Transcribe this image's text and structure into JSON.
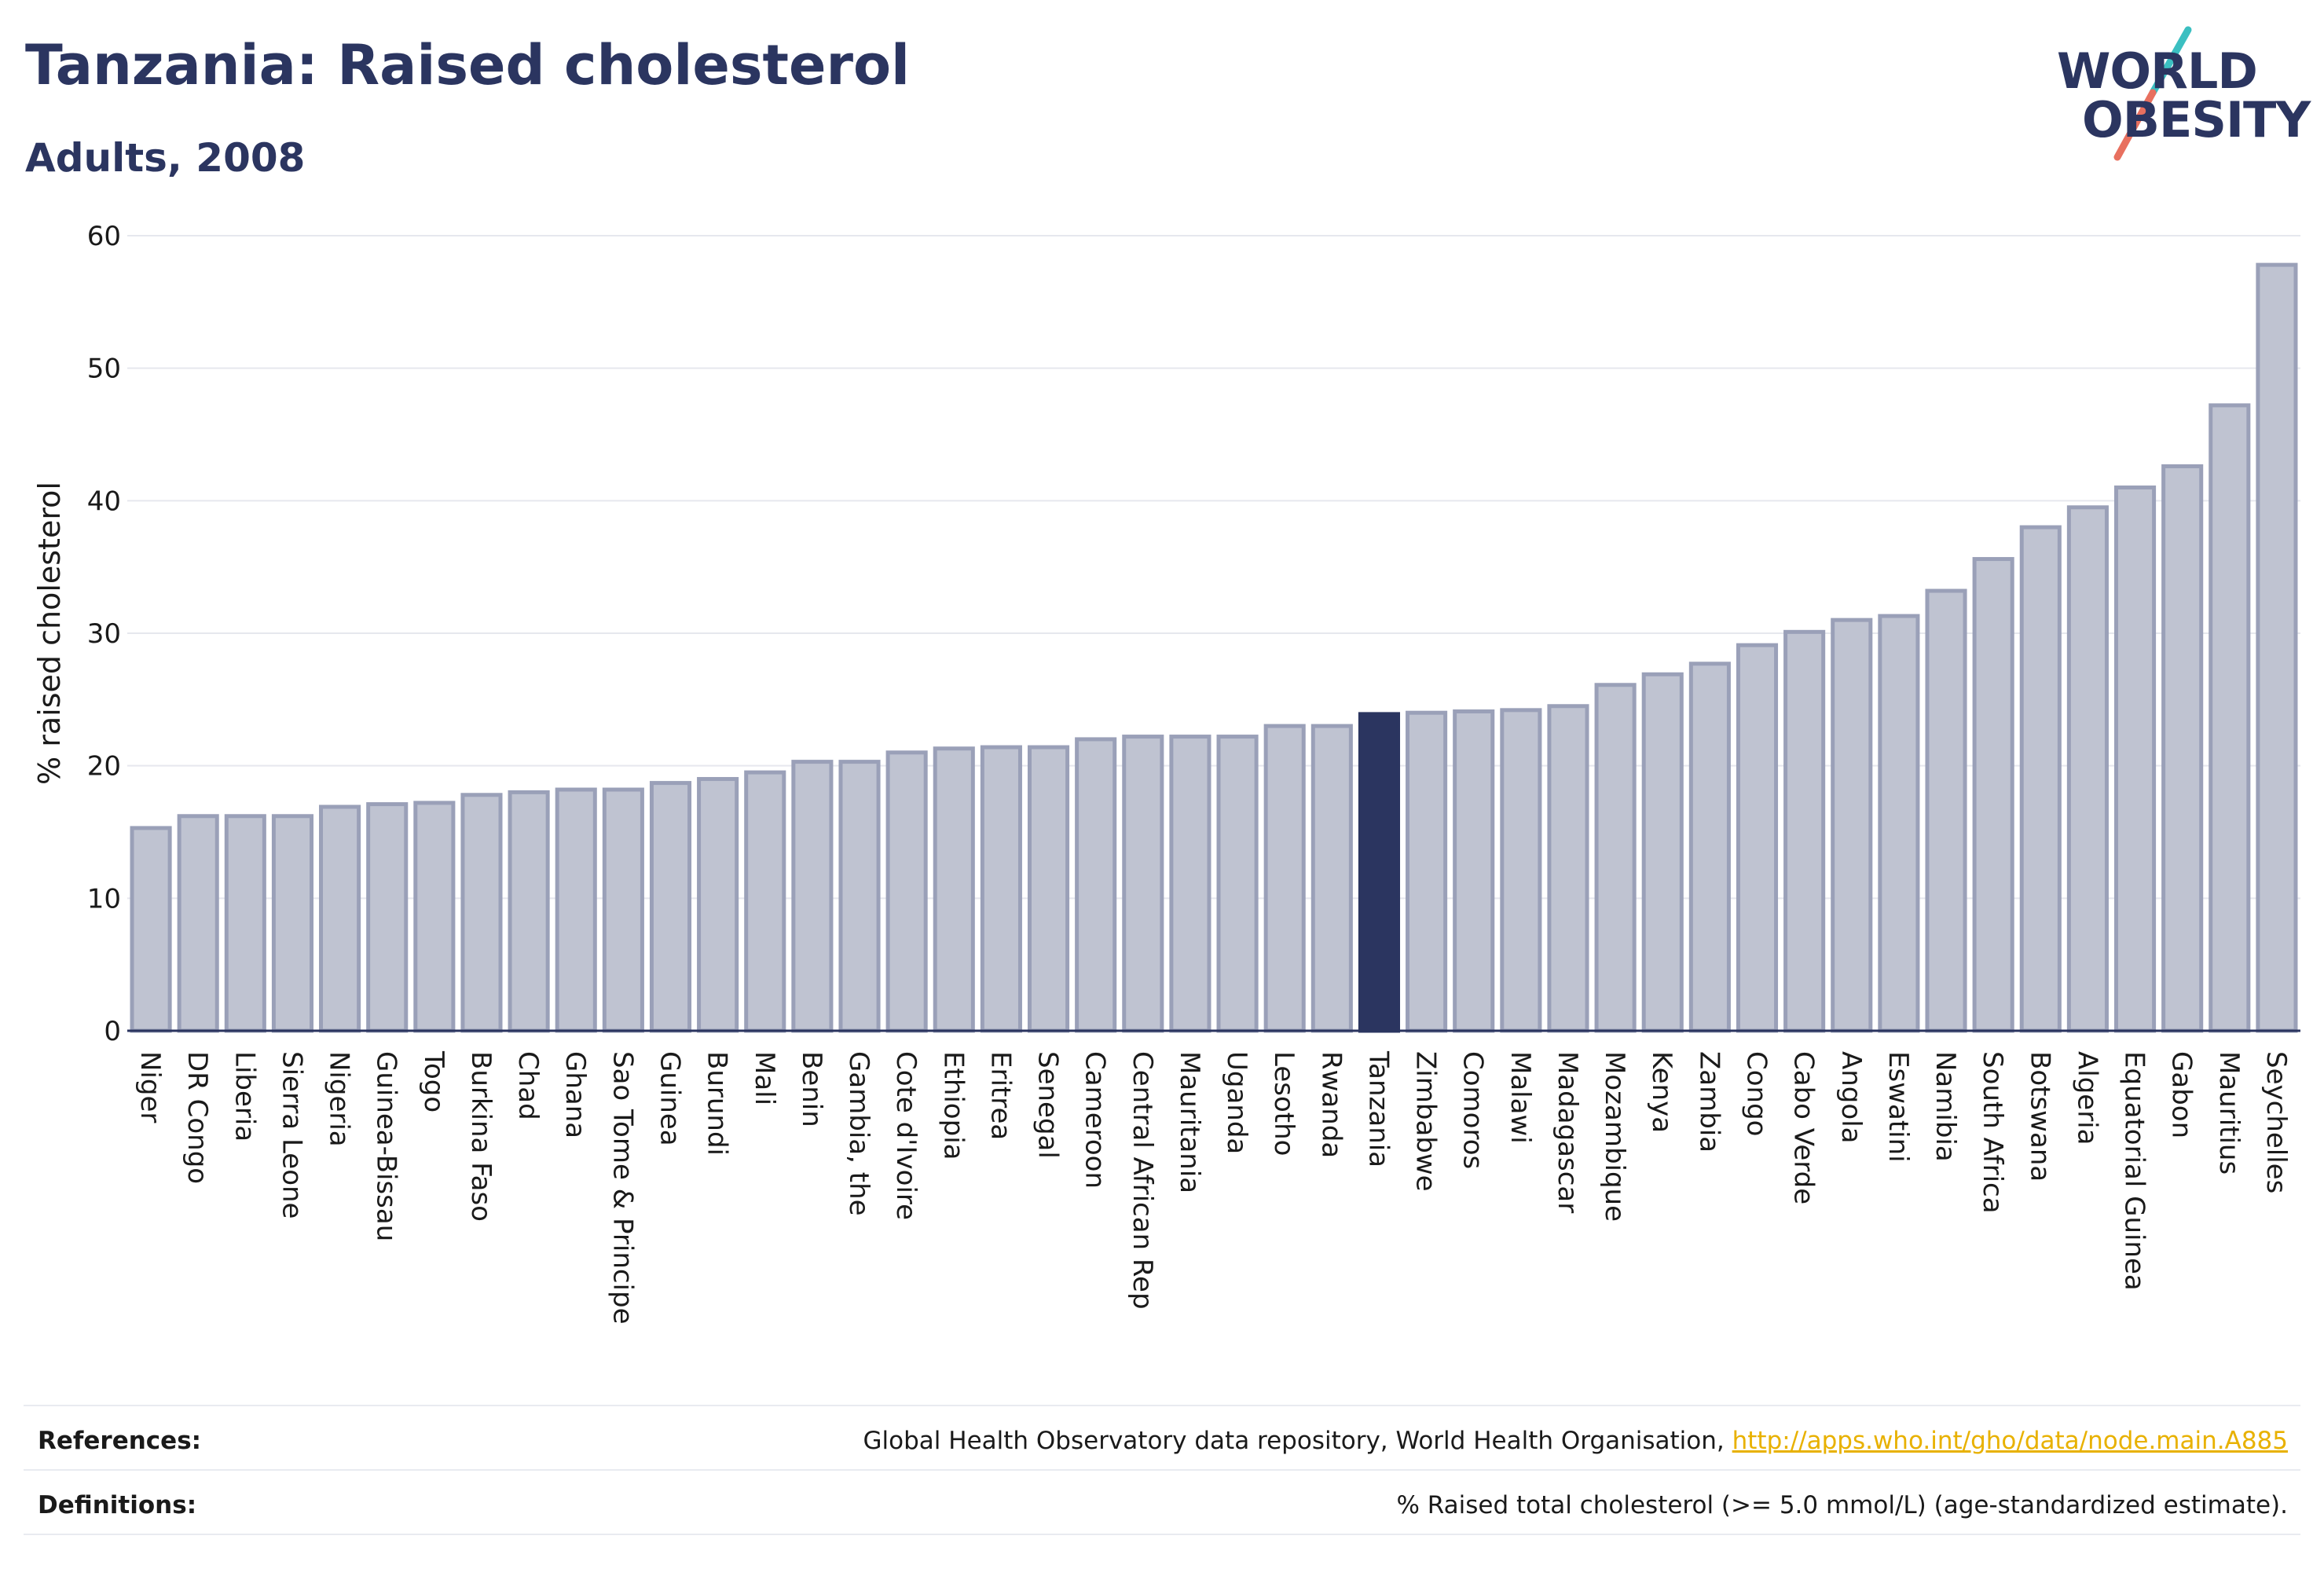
{
  "header": {
    "title": "Tanzania: Raised cholesterol",
    "subtitle": "Adults, 2008"
  },
  "logo": {
    "line1": "WORLD",
    "line2": "OBESITY",
    "accent_teal": "#3bbfc1",
    "accent_coral": "#e8705f"
  },
  "colors": {
    "bar": "#bfc3d1",
    "bar_stroke": "#9aa0b8",
    "highlight": "#2b3560",
    "grid": "#e6e8ee",
    "axis": "#2b3560",
    "text": "#1a1a1a"
  },
  "chart_data": {
    "type": "bar",
    "title": "Tanzania: Raised cholesterol",
    "subtitle": "Adults, 2008",
    "xlabel": "",
    "ylabel": "% raised cholesterol",
    "ylim": [
      0,
      60
    ],
    "yticks": [
      0,
      10,
      20,
      30,
      40,
      50,
      60
    ],
    "grid": true,
    "highlight": "Tanzania",
    "categories": [
      "Niger",
      "DR Congo",
      "Liberia",
      "Sierra Leone",
      "Nigeria",
      "Guinea-Bissau",
      "Togo",
      "Burkina Faso",
      "Chad",
      "Ghana",
      "Sao Tome & Principe",
      "Guinea",
      "Burundi",
      "Mali",
      "Benin",
      "Gambia, the",
      "Cote d'Ivoire",
      "Ethiopia",
      "Eritrea",
      "Senegal",
      "Cameroon",
      "Central African Rep",
      "Mauritania",
      "Uganda",
      "Lesotho",
      "Rwanda",
      "Tanzania",
      "Zimbabwe",
      "Comoros",
      "Malawi",
      "Madagascar",
      "Mozambique",
      "Kenya",
      "Zambia",
      "Congo",
      "Cabo Verde",
      "Angola",
      "Eswatini",
      "Namibia",
      "South Africa",
      "Botswana",
      "Algeria",
      "Equatorial Guinea",
      "Gabon",
      "Mauritius",
      "Seychelles"
    ],
    "values": [
      15.3,
      16.2,
      16.2,
      16.2,
      16.9,
      17.1,
      17.2,
      17.8,
      18.0,
      18.2,
      18.2,
      18.7,
      19.0,
      19.5,
      20.3,
      20.3,
      21.0,
      21.3,
      21.4,
      21.4,
      22.0,
      22.2,
      22.2,
      22.2,
      23.0,
      23.0,
      23.9,
      24.0,
      24.1,
      24.2,
      24.5,
      26.1,
      26.9,
      27.7,
      29.1,
      30.1,
      31.0,
      31.3,
      33.2,
      35.6,
      38.0,
      39.5,
      41.0,
      42.6,
      47.2,
      57.8
    ]
  },
  "footer": {
    "references_label": "References:",
    "references_text": "Global Health Observatory data repository, World Health Organisation, ",
    "references_link": "http://apps.who.int/gho/data/node.main.A885",
    "definitions_label": "Definitions:",
    "definitions_text": "% Raised total cholesterol (>= 5.0 mmol/L) (age-standardized estimate)."
  }
}
